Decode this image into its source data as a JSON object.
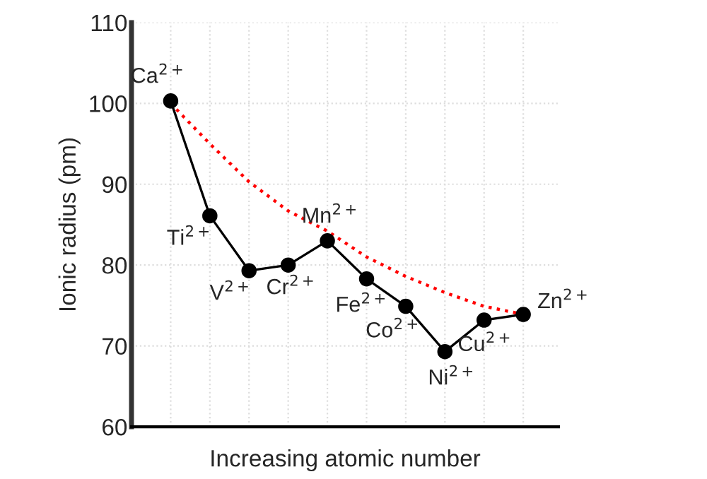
{
  "chart_data": {
    "type": "line",
    "xlabel": "Increasing atomic number",
    "ylabel": "Ionic radius (pm)",
    "categories": [
      null,
      null,
      null,
      null,
      null,
      null,
      null,
      null,
      null,
      null
    ],
    "ylim": [
      60,
      110
    ],
    "yticks": [
      60,
      70,
      80,
      90,
      100,
      110
    ],
    "grid": true,
    "series": [
      {
        "color": "#ff0000",
        "line_style": "dotted",
        "marker": "none",
        "values": [
          100,
          95,
          90.3,
          86.7,
          84.2,
          81,
          78.6,
          76.6,
          74.9,
          73.9
        ]
      },
      {
        "color": "#000000",
        "line_style": "solid",
        "marker": "circle",
        "values": [
          100.3,
          86.1,
          79.3,
          80,
          83,
          78.3,
          74.9,
          69.3,
          73.2,
          73.9
        ],
        "value_labels": [
          "Ca$^{2+}$",
          "Ti$^{2+}$",
          "V$^{2+}$",
          "Cr$^{2+}$",
          "Mn$^{2+}$",
          "Fe$^{2+}$",
          "Co$^{2+}$",
          "Ni$^{2+}$",
          "Cu$^{2+}$",
          "Zn$^{2+}$"
        ]
      }
    ]
  }
}
